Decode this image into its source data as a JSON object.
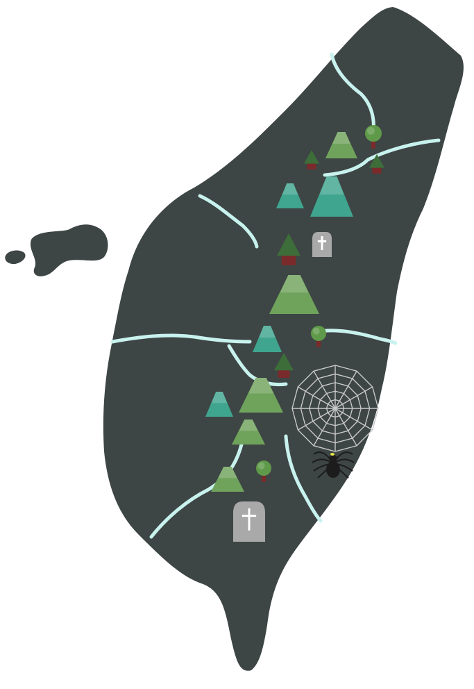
{
  "map": {
    "colors": {
      "land": "#3e4545",
      "land_light": "#4a5252",
      "river": "#c8f2ee",
      "mountain_dark": "#3fa58e",
      "mountain_light": "#6fa35c",
      "tree_canopy": "#5f9a4a",
      "tree_trunk": "#7a2a2a",
      "pine_dark": "#3d6e3a",
      "gravestone": "#a9a9a9",
      "cross": "#ffffff",
      "spider_web": "#c9c9c9",
      "spider": "#1c1c1c",
      "spider_mark": "#e8e34a"
    },
    "icons": [
      "mountain-icon",
      "round-tree-icon",
      "pine-tree-icon",
      "gravestone-icon",
      "spider-web-icon",
      "spider-icon"
    ]
  }
}
